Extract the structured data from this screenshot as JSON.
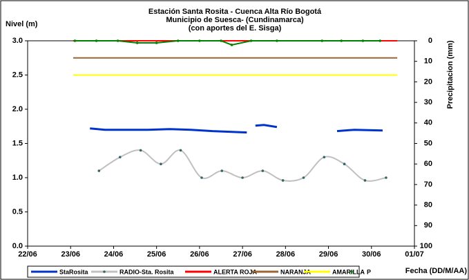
{
  "chart_data": {
    "type": "line",
    "title": [
      "Estación Santa Rosita - Cuenca Alta Río Bogotá",
      "Municipio de Suesca- (Cundinamarca)",
      "(con aportes del  E. Sisga)"
    ],
    "y_label": "Nivel (m)",
    "y2_label": "Precipitacion (mm)",
    "x_label": "Fecha (DD/M/AA)",
    "xlim": [
      22,
      31
    ],
    "xticks": [
      {
        "value": 22,
        "label": "22/06"
      },
      {
        "value": 23,
        "label": "23/06"
      },
      {
        "value": 24,
        "label": "24/06"
      },
      {
        "value": 25,
        "label": "25/06"
      },
      {
        "value": 26,
        "label": "26/06"
      },
      {
        "value": 27,
        "label": "27/06"
      },
      {
        "value": 28,
        "label": "28/06"
      },
      {
        "value": 29,
        "label": "29/06"
      },
      {
        "value": 30,
        "label": "30/06"
      },
      {
        "value": 31,
        "label": "01/07"
      }
    ],
    "ylim": [
      0,
      3
    ],
    "yticks": [
      {
        "value": 0,
        "label": "0.0"
      },
      {
        "value": 0.5,
        "label": "0.5"
      },
      {
        "value": 1,
        "label": "1.0"
      },
      {
        "value": 1.5,
        "label": "1.5"
      },
      {
        "value": 2,
        "label": "2.0"
      },
      {
        "value": 2.5,
        "label": "2.5"
      },
      {
        "value": 3,
        "label": "3.0"
      }
    ],
    "y2lim": [
      0,
      100
    ],
    "y2_inverted": true,
    "y2ticks": [
      0,
      10,
      20,
      30,
      40,
      50,
      60,
      70,
      80,
      90,
      100
    ],
    "series": [
      {
        "name": "StaRosita",
        "color": "#0033cc",
        "width": 3,
        "x": [
          23.45,
          23.8,
          24.2,
          24.8,
          25.3,
          25.8,
          26.3,
          26.7,
          27.1,
          27.16,
          27.3,
          27.5,
          27.8,
          28.87,
          29.2,
          29.6,
          30.26
        ],
        "values": [
          1.72,
          1.7,
          1.7,
          1.7,
          1.71,
          1.7,
          1.68,
          1.67,
          1.66,
          null,
          1.76,
          1.77,
          1.74,
          null,
          1.68,
          1.7,
          1.69
        ]
      },
      {
        "name": "RADIO-Sta. Rosita",
        "color": "#c0c0c0",
        "marker_color": "#336666",
        "width": 2,
        "smooth": true,
        "markers": true,
        "x": [
          23.66,
          24.15,
          24.63,
          25.1,
          25.56,
          26.05,
          26.52,
          27.0,
          27.47,
          27.94,
          28.42,
          28.9,
          29.37,
          29.85,
          30.34
        ],
        "values": [
          1.1,
          1.3,
          1.4,
          1.2,
          1.4,
          1.0,
          1.1,
          1.0,
          1.1,
          0.96,
          1.0,
          1.3,
          1.2,
          0.96,
          1.0
        ]
      },
      {
        "name": "ALERTA ROJA",
        "color": "#ff0000",
        "width": 2,
        "x": [
          23.06,
          30.6
        ],
        "values": [
          3,
          3
        ]
      },
      {
        "name": "NARANJA",
        "color": "#996633",
        "width": 2,
        "x": [
          23.06,
          30.6
        ],
        "values": [
          2.75,
          2.75
        ]
      },
      {
        "name": "AMARILLA",
        "color": "#ffff00",
        "width": 2,
        "x": [
          23.06,
          30.6
        ],
        "values": [
          2.5,
          2.5
        ]
      },
      {
        "name": "P",
        "color": "#008000",
        "width": 2,
        "axis": "y2",
        "markers": true,
        "x": [
          23.1,
          23.6,
          24.1,
          24.55,
          25.0,
          25.5,
          26.0,
          26.5,
          26.75,
          27.2,
          27.8,
          28.85,
          29.3,
          29.8,
          30.2
        ],
        "values": [
          0,
          0,
          0,
          1,
          1,
          0,
          0,
          0,
          2,
          0,
          0,
          0,
          0,
          0,
          0
        ]
      }
    ]
  }
}
